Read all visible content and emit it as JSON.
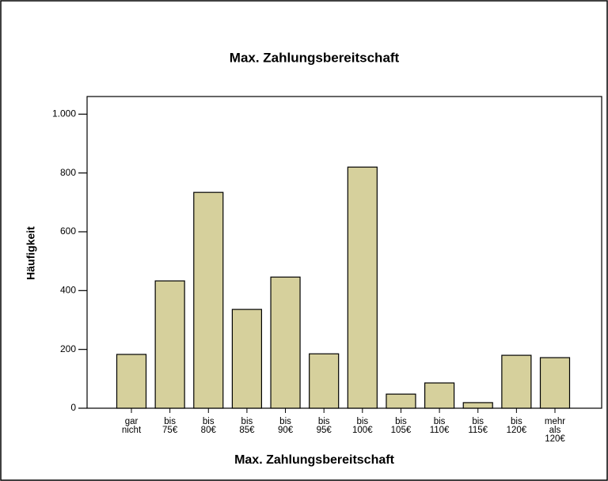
{
  "chart_data": {
    "type": "bar",
    "title": "Max. Zahlungsbereitschaft",
    "x_label": "Max. Zahlungsbereitschaft",
    "y_label": "Häufigkeit",
    "categories": [
      "gar nicht",
      "bis 75€",
      "bis 80€",
      "bis 85€",
      "bis 90€",
      "bis 95€",
      "bis 100€",
      "bis 105€",
      "bis 110€",
      "bis 115€",
      "bis 120€",
      "mehr als 120€"
    ],
    "values": [
      183,
      433,
      734,
      336,
      446,
      185,
      820,
      48,
      86,
      19,
      180,
      172
    ],
    "color": "#d6d09c",
    "ylim": [
      0,
      1060
    ],
    "yticks": [
      0,
      200,
      400,
      600,
      800,
      {
        "value": 1000,
        "label": "1.000"
      }
    ],
    "grid": false
  }
}
